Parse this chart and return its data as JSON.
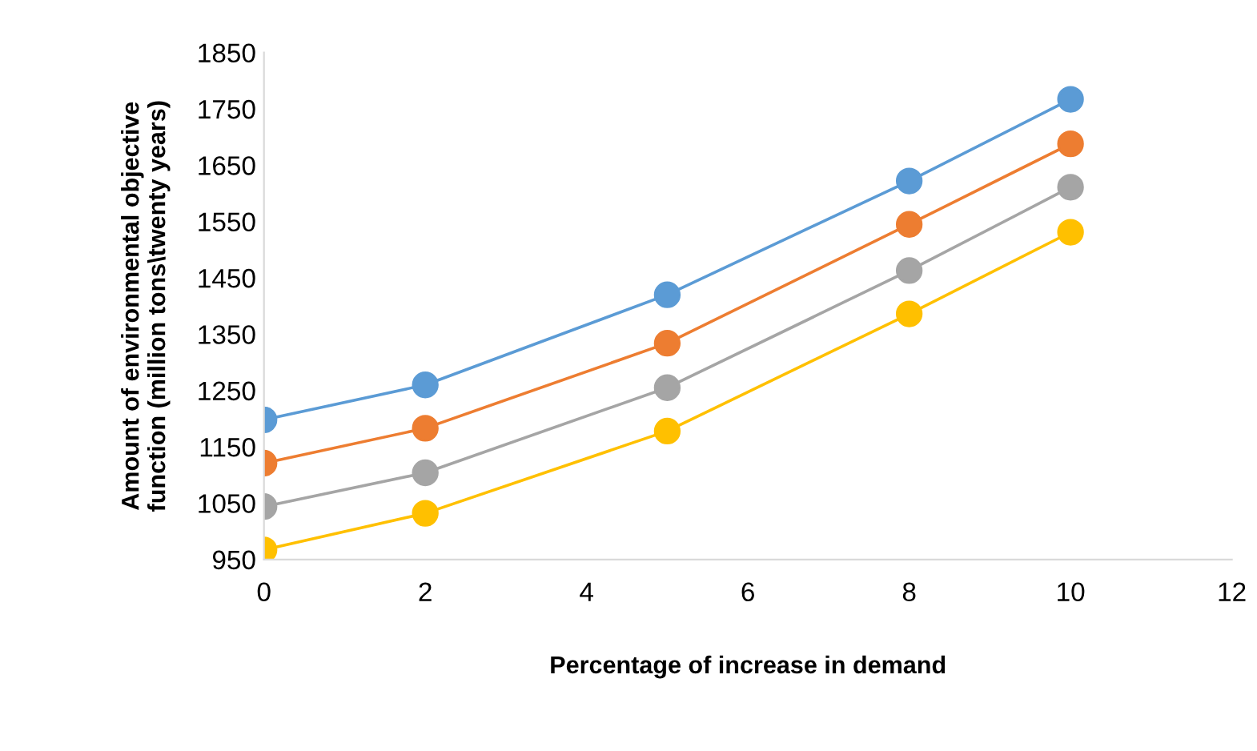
{
  "chart_data": {
    "type": "line",
    "xlabel": "Percentage of increase in demand",
    "ylabel": "Amount of environmental objective\nfunction (million tons\\twenty years)",
    "x": [
      0,
      2,
      5,
      8,
      10
    ],
    "series": [
      {
        "color": "#5b9bd5",
        "values": [
          1198,
          1260,
          1420,
          1622,
          1767
        ]
      },
      {
        "color": "#ed7d31",
        "values": [
          1121,
          1183,
          1334,
          1545,
          1688
        ]
      },
      {
        "color": "#a5a5a5",
        "values": [
          1044,
          1104,
          1255,
          1463,
          1611
        ]
      },
      {
        "color": "#ffc000",
        "values": [
          967,
          1032,
          1178,
          1386,
          1531
        ]
      }
    ],
    "xlim": [
      0,
      12
    ],
    "xticks": [
      0,
      2,
      4,
      6,
      8,
      10,
      12
    ],
    "ylim": [
      950,
      1850
    ],
    "yticks": [
      950,
      1050,
      1150,
      1250,
      1350,
      1450,
      1550,
      1650,
      1750,
      1850
    ],
    "grid": false,
    "marker": "circle",
    "line_style": "solid"
  }
}
